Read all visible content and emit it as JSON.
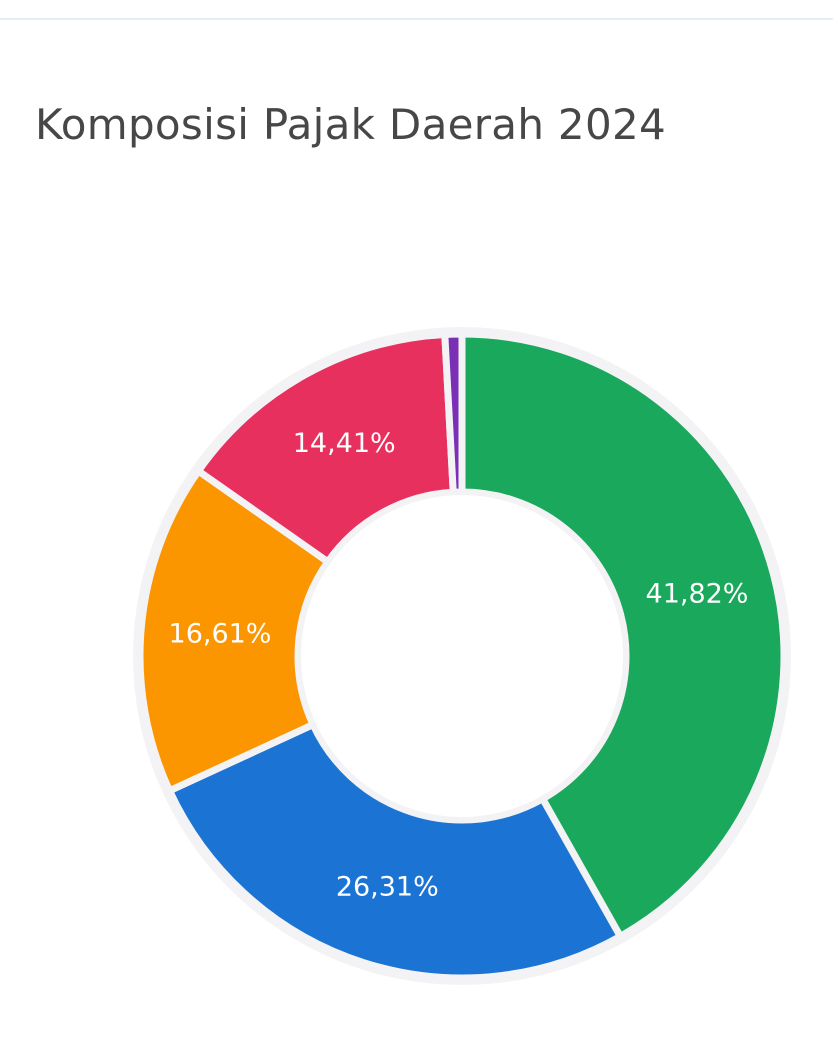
{
  "chart_data": {
    "type": "pie",
    "title": "Komposisi Pajak Daerah 2024",
    "categories": [
      "",
      "",
      "",
      "",
      ""
    ],
    "values": [
      41.82,
      26.31,
      16.61,
      14.41,
      0.85
    ],
    "labels": [
      "41,82%",
      "26,31%",
      "16,61%",
      "14,41%",
      ""
    ],
    "colors": [
      "#19a85c",
      "#1b74d4",
      "#fb9500",
      "#e8305e",
      "#7a2fb5"
    ],
    "hole": "donut",
    "start_angle_deg": 0,
    "direction": "clockwise",
    "legend": "none"
  }
}
